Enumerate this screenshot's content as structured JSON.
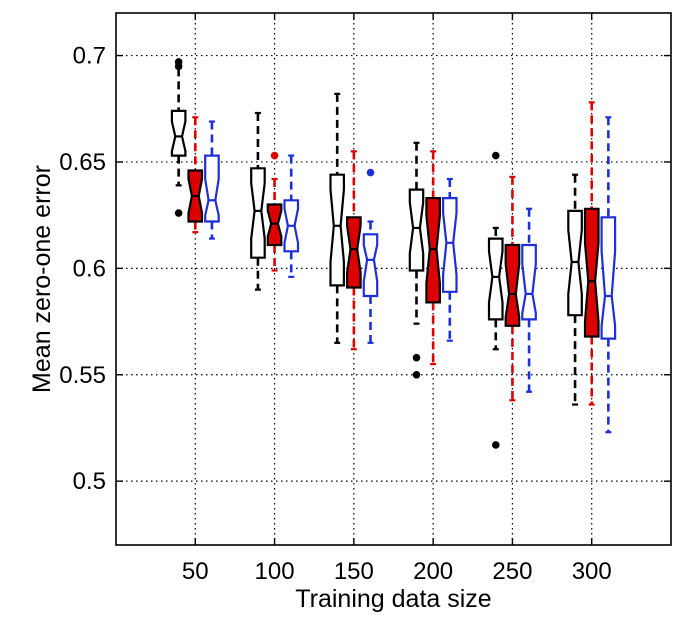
{
  "chart_data": {
    "type": "boxplot",
    "title": "",
    "xlabel": "Training data size",
    "ylabel": "Mean zero-one error",
    "categories": [
      "50",
      "100",
      "150",
      "200",
      "250",
      "300"
    ],
    "xlim": [
      0,
      7
    ],
    "ylim": [
      0.47,
      0.72
    ],
    "yticks": [
      0.5,
      0.55,
      0.6,
      0.65,
      0.7
    ],
    "ytick_labels": [
      "0.5",
      "0.55",
      "0.6",
      "0.65",
      "0.7"
    ],
    "grid": true,
    "legend": null,
    "series": [
      {
        "color": "#000000",
        "filled": false,
        "boxes": [
          {
            "whisker_low": 0.639,
            "q1": 0.653,
            "median": 0.662,
            "q3": 0.674,
            "whisker_high": 0.694,
            "notch_low": 0.655,
            "notch_high": 0.669,
            "outliers": [
              0.626,
              0.697,
              0.695
            ]
          },
          {
            "whisker_low": 0.59,
            "q1": 0.605,
            "median": 0.627,
            "q3": 0.647,
            "whisker_high": 0.673,
            "notch_low": 0.614,
            "notch_high": 0.64,
            "outliers": []
          },
          {
            "whisker_low": 0.565,
            "q1": 0.592,
            "median": 0.62,
            "q3": 0.644,
            "whisker_high": 0.682,
            "notch_low": 0.603,
            "notch_high": 0.637,
            "outliers": []
          },
          {
            "whisker_low": 0.574,
            "q1": 0.599,
            "median": 0.619,
            "q3": 0.637,
            "whisker_high": 0.659,
            "notch_low": 0.607,
            "notch_high": 0.631,
            "outliers": [
              0.558,
              0.55
            ]
          },
          {
            "whisker_low": 0.562,
            "q1": 0.576,
            "median": 0.596,
            "q3": 0.614,
            "whisker_high": 0.619,
            "notch_low": 0.584,
            "notch_high": 0.608,
            "outliers": [
              0.653,
              0.517
            ]
          },
          {
            "whisker_low": 0.536,
            "q1": 0.578,
            "median": 0.603,
            "q3": 0.627,
            "whisker_high": 0.644,
            "notch_low": 0.588,
            "notch_high": 0.618,
            "outliers": []
          }
        ]
      },
      {
        "color": "#dd0000",
        "filled": true,
        "boxes": [
          {
            "whisker_low": 0.617,
            "q1": 0.622,
            "median": 0.634,
            "q3": 0.646,
            "whisker_high": 0.671,
            "notch_low": 0.626,
            "notch_high": 0.642,
            "outliers": []
          },
          {
            "whisker_low": 0.599,
            "q1": 0.611,
            "median": 0.621,
            "q3": 0.63,
            "whisker_high": 0.642,
            "notch_low": 0.615,
            "notch_high": 0.627,
            "outliers": [
              0.653
            ]
          },
          {
            "whisker_low": 0.562,
            "q1": 0.591,
            "median": 0.609,
            "q3": 0.624,
            "whisker_high": 0.655,
            "notch_low": 0.598,
            "notch_high": 0.62,
            "outliers": []
          },
          {
            "whisker_low": 0.555,
            "q1": 0.584,
            "median": 0.609,
            "q3": 0.633,
            "whisker_high": 0.655,
            "notch_low": 0.593,
            "notch_high": 0.625,
            "outliers": []
          },
          {
            "whisker_low": 0.538,
            "q1": 0.573,
            "median": 0.588,
            "q3": 0.611,
            "whisker_high": 0.643,
            "notch_low": 0.577,
            "notch_high": 0.602,
            "outliers": []
          },
          {
            "whisker_low": 0.536,
            "q1": 0.568,
            "median": 0.594,
            "q3": 0.628,
            "whisker_high": 0.678,
            "notch_low": 0.575,
            "notch_high": 0.612,
            "outliers": []
          }
        ]
      },
      {
        "color": "#1f2fd6",
        "filled": false,
        "boxes": [
          {
            "whisker_low": 0.614,
            "q1": 0.622,
            "median": 0.632,
            "q3": 0.653,
            "whisker_high": 0.669,
            "notch_low": 0.625,
            "notch_high": 0.642,
            "outliers": []
          },
          {
            "whisker_low": 0.596,
            "q1": 0.608,
            "median": 0.62,
            "q3": 0.632,
            "whisker_high": 0.653,
            "notch_low": 0.612,
            "notch_high": 0.628,
            "outliers": []
          },
          {
            "whisker_low": 0.565,
            "q1": 0.587,
            "median": 0.604,
            "q3": 0.616,
            "whisker_high": 0.622,
            "notch_low": 0.594,
            "notch_high": 0.611,
            "outliers": [
              0.645
            ]
          },
          {
            "whisker_low": 0.566,
            "q1": 0.589,
            "median": 0.612,
            "q3": 0.633,
            "whisker_high": 0.642,
            "notch_low": 0.597,
            "notch_high": 0.626,
            "outliers": []
          },
          {
            "whisker_low": 0.542,
            "q1": 0.576,
            "median": 0.588,
            "q3": 0.611,
            "whisker_high": 0.628,
            "notch_low": 0.579,
            "notch_high": 0.602,
            "outliers": []
          },
          {
            "whisker_low": 0.523,
            "q1": 0.567,
            "median": 0.587,
            "q3": 0.624,
            "whisker_high": 0.671,
            "notch_low": 0.573,
            "notch_high": 0.608,
            "outliers": []
          }
        ]
      }
    ]
  }
}
